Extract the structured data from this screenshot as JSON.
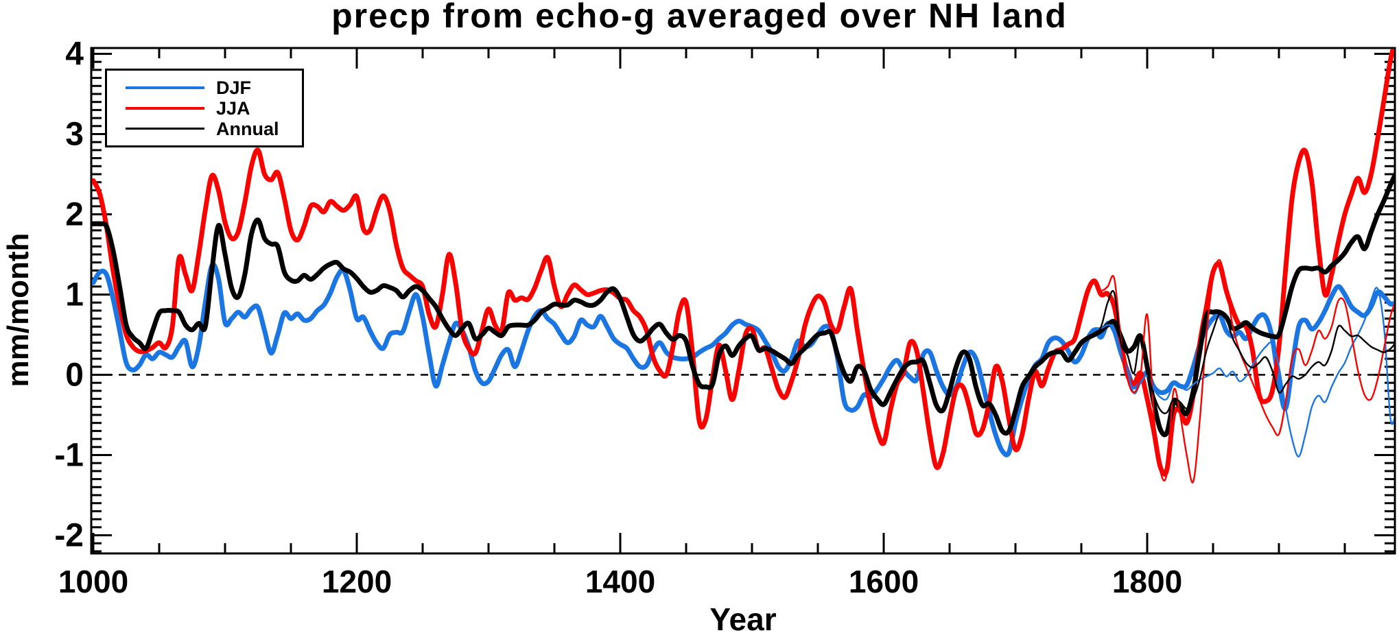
{
  "chart_data": {
    "type": "line",
    "title": "precp from echo-g averaged over NH land",
    "xlabel": "Year",
    "ylabel": "mm/month",
    "xlim": [
      1000,
      1991
    ],
    "ylim": [
      -2.23,
      4.07
    ],
    "x_major_ticks": [
      1000,
      1200,
      1400,
      1600,
      1800
    ],
    "x_tick_labels": [
      "1000",
      "1200",
      "1400",
      "1600",
      "1800"
    ],
    "x_minor_step": 50,
    "y_major_ticks": [
      -2,
      -1,
      0,
      1,
      2,
      3,
      4
    ],
    "y_tick_labels": [
      "-2",
      "-1",
      "0",
      "1",
      "2",
      "3",
      "4"
    ],
    "y_minor_step": 0.1,
    "grid": false,
    "zero_line": {
      "value": 0,
      "style": "dashed",
      "color": "#000000"
    },
    "legend": {
      "position": "top-left",
      "entries": [
        {
          "label": "DJF",
          "color": "#1B76E1"
        },
        {
          "label": "JJA",
          "color": "#F80400"
        },
        {
          "label": "Annual",
          "color": "#000000"
        }
      ]
    },
    "sampling_step_years": 5,
    "series": [
      {
        "name": "DJF",
        "color": "#1B76E1",
        "line": "thick",
        "x_start": 1000,
        "values": [
          1.15,
          1.28,
          1.25,
          0.95,
          0.55,
          0.15,
          0.06,
          0.12,
          0.25,
          0.2,
          0.28,
          0.25,
          0.22,
          0.35,
          0.42,
          0.1,
          0.35,
          0.9,
          1.36,
          1.2,
          0.65,
          0.7,
          0.78,
          0.72,
          0.82,
          0.84,
          0.55,
          0.27,
          0.5,
          0.77,
          0.7,
          0.76,
          0.68,
          0.7,
          0.8,
          0.87,
          1.02,
          1.22,
          1.3,
          1.05,
          0.7,
          0.72,
          0.55,
          0.4,
          0.33,
          0.5,
          0.53,
          0.54,
          0.8,
          1.0,
          0.72,
          0.25,
          -0.14,
          0.12,
          0.4,
          0.64,
          0.55,
          0.35,
          0.05,
          -0.1,
          -0.08,
          0.08,
          0.25,
          0.31,
          0.1,
          0.3,
          0.55,
          0.73,
          0.8,
          0.7,
          0.63,
          0.5,
          0.4,
          0.48,
          0.68,
          0.62,
          0.6,
          0.73,
          0.6,
          0.45,
          0.38,
          0.33,
          0.2,
          0.1,
          0.12,
          0.3,
          0.4,
          0.28,
          0.22,
          0.2,
          0.2,
          0.22,
          0.28,
          0.33,
          0.37,
          0.45,
          0.52,
          0.62,
          0.67,
          0.63,
          0.6,
          0.55,
          0.42,
          0.28,
          0.1,
          0.05,
          0.2,
          0.42,
          0.35,
          0.38,
          0.5,
          0.6,
          0.55,
          0.2,
          -0.33,
          -0.44,
          -0.4,
          -0.25,
          -0.28,
          -0.18,
          -0.05,
          0.1,
          0.18,
          0.06,
          -0.03,
          -0.06,
          0.25,
          0.28,
          0.05,
          -0.15,
          -0.25,
          -0.15,
          0.1,
          0.28,
          0.2,
          -0.1,
          -0.45,
          -0.75,
          -0.95,
          -0.97,
          -0.6,
          -0.3,
          -0.05,
          0.12,
          0.2,
          0.4,
          0.46,
          0.42,
          0.3,
          0.16,
          0.25,
          0.45,
          0.56,
          0.47,
          0.64,
          0.55,
          0.28,
          0.05,
          -0.15,
          -0.05,
          0.02,
          -0.15,
          -0.22,
          -0.2,
          -0.1,
          -0.14,
          -0.13,
          0.1,
          0.38,
          0.58,
          0.7,
          0.75,
          0.55,
          0.48,
          0.53,
          0.45,
          0.6,
          0.73,
          0.72,
          0.45,
          -0.1,
          -0.42,
          0.1,
          0.6,
          0.68,
          0.57,
          0.65,
          0.8,
          0.98,
          1.1,
          1.0,
          0.85,
          0.78,
          0.74,
          0.85,
          1.03,
          0.97,
          0.88,
          0.92
        ]
      },
      {
        "name": "JJA",
        "color": "#F80400",
        "line": "thick",
        "x_start": 1000,
        "values": [
          2.42,
          2.25,
          1.85,
          1.3,
          0.85,
          0.5,
          0.35,
          0.29,
          0.3,
          0.34,
          0.4,
          0.34,
          0.6,
          1.45,
          1.25,
          1.05,
          1.5,
          2.05,
          2.48,
          2.3,
          1.9,
          1.7,
          1.78,
          2.15,
          2.6,
          2.8,
          2.5,
          2.43,
          2.52,
          2.2,
          1.8,
          1.68,
          1.85,
          2.1,
          2.1,
          2.03,
          2.16,
          2.1,
          2.05,
          2.12,
          2.22,
          1.82,
          1.8,
          2.05,
          2.23,
          2.05,
          1.62,
          1.33,
          1.24,
          1.17,
          1.1,
          0.75,
          0.6,
          1.0,
          1.5,
          1.15,
          0.55,
          0.33,
          0.27,
          0.55,
          0.82,
          0.62,
          0.55,
          1.02,
          0.93,
          0.96,
          0.94,
          1.08,
          1.3,
          1.46,
          1.1,
          0.85,
          1.0,
          1.12,
          1.06,
          1.0,
          1.02,
          1.05,
          1.06,
          1.02,
          0.95,
          0.93,
          0.8,
          0.72,
          0.55,
          0.22,
          0.05,
          0.0,
          0.35,
          0.8,
          0.9,
          0.25,
          -0.58,
          -0.55,
          -0.05,
          0.37,
          0.05,
          -0.31,
          0.05,
          0.5,
          0.57,
          0.31,
          0.33,
          0.08,
          -0.18,
          -0.28,
          -0.08,
          0.2,
          0.6,
          0.85,
          0.98,
          0.9,
          0.62,
          0.55,
          0.85,
          1.07,
          0.55,
          0.05,
          -0.38,
          -0.7,
          -0.85,
          -0.45,
          -0.12,
          0.03,
          0.4,
          0.3,
          -0.2,
          -0.75,
          -1.15,
          -0.98,
          -0.55,
          -0.18,
          -0.15,
          -0.4,
          -0.73,
          -0.68,
          -0.35,
          0.1,
          -0.08,
          -0.55,
          -0.93,
          -0.75,
          -0.3,
          0.04,
          -0.14,
          0.08,
          0.28,
          0.32,
          0.38,
          0.45,
          0.75,
          1.05,
          1.17,
          1.0,
          1.01,
          0.85,
          0.4,
          0.0,
          -0.11,
          0.02,
          -0.3,
          -0.7,
          -1.15,
          -1.18,
          -0.5,
          -0.45,
          -0.6,
          -0.25,
          0.4,
          0.85,
          1.28,
          1.37,
          1.05,
          0.8,
          0.62,
          0.6,
          0.3,
          -0.25,
          -0.33,
          -0.2,
          0.35,
          1.3,
          2.2,
          2.65,
          2.79,
          2.4,
          1.6,
          1.0,
          1.25,
          1.65,
          2.0,
          2.25,
          2.45,
          2.27,
          2.5,
          2.95,
          3.45,
          3.95,
          4.25
        ]
      },
      {
        "name": "Annual",
        "color": "#000000",
        "line": "thick",
        "x_start": 1000,
        "values": [
          1.88,
          1.88,
          1.85,
          1.55,
          1.1,
          0.62,
          0.47,
          0.4,
          0.33,
          0.55,
          0.77,
          0.8,
          0.8,
          0.78,
          0.62,
          0.56,
          0.64,
          0.6,
          1.3,
          1.86,
          1.5,
          1.08,
          0.97,
          1.25,
          1.75,
          1.93,
          1.7,
          1.63,
          1.6,
          1.28,
          1.18,
          1.17,
          1.24,
          1.19,
          1.25,
          1.33,
          1.38,
          1.4,
          1.32,
          1.28,
          1.2,
          1.1,
          1.03,
          1.05,
          1.11,
          1.09,
          1.05,
          0.97,
          1.05,
          1.1,
          1.05,
          0.95,
          0.85,
          0.7,
          0.57,
          0.49,
          0.58,
          0.64,
          0.45,
          0.5,
          0.58,
          0.53,
          0.49,
          0.6,
          0.62,
          0.62,
          0.62,
          0.68,
          0.78,
          0.83,
          0.88,
          0.87,
          0.87,
          0.93,
          0.91,
          0.87,
          0.87,
          0.93,
          1.03,
          1.07,
          0.95,
          0.72,
          0.5,
          0.42,
          0.48,
          0.58,
          0.63,
          0.52,
          0.44,
          0.49,
          0.42,
          0.1,
          -0.12,
          -0.15,
          -0.12,
          0.25,
          0.36,
          0.24,
          0.36,
          0.45,
          0.48,
          0.31,
          0.33,
          0.3,
          0.25,
          0.2,
          0.14,
          0.25,
          0.33,
          0.42,
          0.5,
          0.52,
          0.52,
          0.25,
          0.02,
          -0.08,
          0.1,
          0.05,
          -0.18,
          -0.3,
          -0.37,
          -0.22,
          -0.06,
          0.08,
          0.15,
          0.16,
          0.17,
          -0.1,
          -0.38,
          -0.44,
          -0.2,
          0.1,
          0.28,
          0.2,
          -0.15,
          -0.38,
          -0.36,
          -0.5,
          -0.7,
          -0.7,
          -0.45,
          -0.15,
          -0.02,
          0.1,
          0.17,
          0.25,
          0.28,
          0.28,
          0.18,
          0.28,
          0.4,
          0.46,
          0.5,
          0.55,
          0.62,
          0.66,
          0.48,
          0.3,
          0.35,
          0.48,
          0.1,
          -0.35,
          -0.68,
          -0.72,
          -0.35,
          -0.4,
          -0.48,
          -0.2,
          0.3,
          0.74,
          0.78,
          0.78,
          0.72,
          0.58,
          0.6,
          0.65,
          0.58,
          0.53,
          0.5,
          0.48,
          0.5,
          0.78,
          1.1,
          1.3,
          1.33,
          1.32,
          1.33,
          1.28,
          1.36,
          1.43,
          1.52,
          1.65,
          1.72,
          1.57,
          1.78,
          2.0,
          2.18,
          2.38,
          2.55
        ]
      },
      {
        "name": "DJF-thin",
        "color": "#1B76E1",
        "line": "thin",
        "legend": false,
        "x_start": 1755,
        "values": [
          0.5,
          0.58,
          0.58,
          0.62,
          0.58,
          0.28,
          0.05,
          -0.23,
          -0.1,
          -0.01,
          -0.18,
          -0.28,
          -0.3,
          -0.12,
          -0.14,
          -0.19,
          -0.12,
          -0.06,
          -0.02,
          0.02,
          0.08,
          -0.02,
          0.04,
          -0.08,
          -0.02,
          0.12,
          0.25,
          0.35,
          0.39,
          0.1,
          -0.4,
          -0.8,
          -1.02,
          -0.75,
          -0.4,
          -0.26,
          -0.34,
          -0.15,
          0.02,
          0.15,
          0.35,
          0.5,
          0.68,
          0.93,
          1.07,
          0.55,
          -0.58,
          -0.33
        ]
      },
      {
        "name": "JJA-thin",
        "color": "#F80400",
        "line": "thin",
        "legend": false,
        "x_start": 1755,
        "values": [
          1.05,
          1.15,
          1.05,
          1.1,
          1.2,
          0.45,
          -0.05,
          -0.22,
          0.0,
          0.75,
          -0.5,
          -1.2,
          -1.22,
          -0.2,
          -0.5,
          -1.0,
          -1.33,
          -0.55,
          0.5,
          1.2,
          1.43,
          1.1,
          0.6,
          0.3,
          0.1,
          -0.1,
          -0.3,
          -0.5,
          -0.65,
          -0.74,
          -0.35,
          0.2,
          0.32,
          0.12,
          0.3,
          0.55,
          0.45,
          0.6,
          0.92,
          0.9,
          0.5,
          0.05,
          -0.25,
          -0.3,
          -0.05,
          0.35,
          0.75,
          0.97
        ]
      },
      {
        "name": "Annual-thin",
        "color": "#000000",
        "line": "thin",
        "legend": false,
        "x_start": 1755,
        "values": [
          0.48,
          0.52,
          0.6,
          0.9,
          1.02,
          0.4,
          0.25,
          0.02,
          0.48,
          0.05,
          -0.25,
          -0.44,
          -0.47,
          -0.3,
          -0.34,
          -0.42,
          -0.3,
          -0.05,
          0.3,
          0.55,
          0.76,
          0.7,
          0.45,
          0.3,
          0.15,
          0.09,
          0.15,
          0.22,
          0.05,
          -0.22,
          -0.12,
          -0.02,
          -0.05,
          0.0,
          0.1,
          0.16,
          0.12,
          0.3,
          0.6,
          0.55,
          0.48,
          0.49,
          0.42,
          0.35,
          0.31,
          0.28,
          0.33,
          0.43
        ]
      }
    ]
  }
}
